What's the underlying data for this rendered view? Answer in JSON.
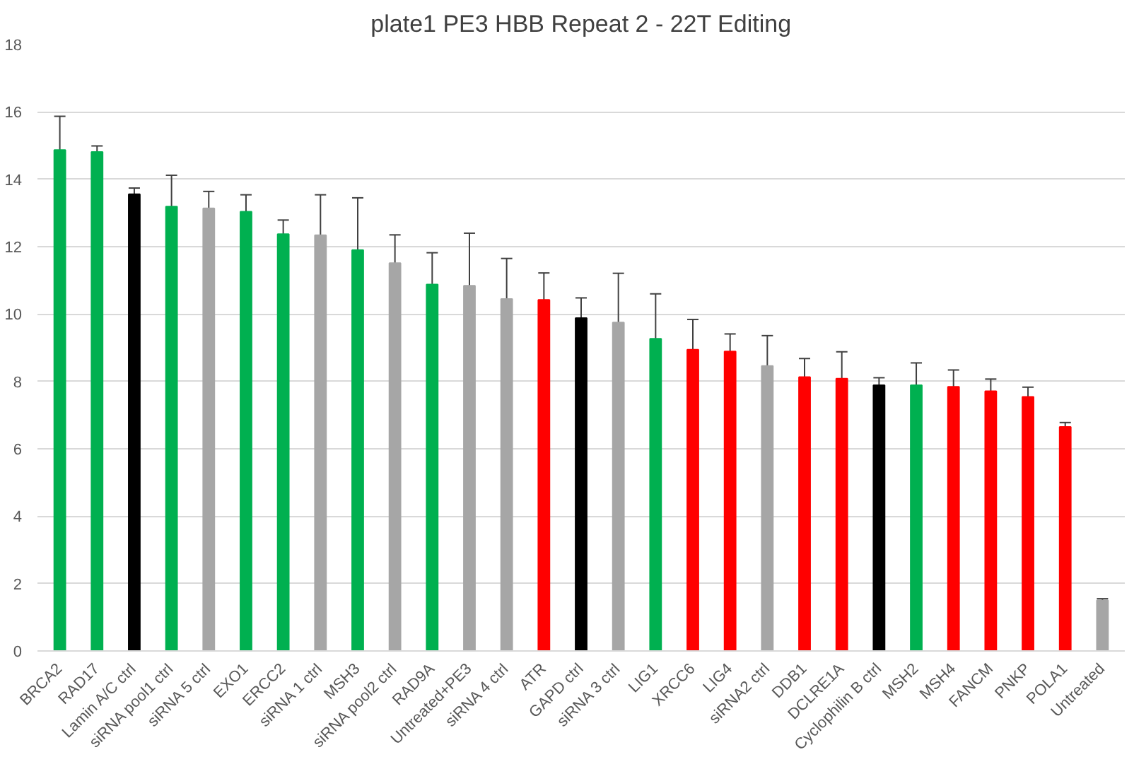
{
  "chart_data": {
    "type": "bar",
    "title": "plate1 PE3 HBB Repeat 2 - 22T Editing",
    "categories": [
      "BRCA2",
      "RAD17",
      "Lamin A/C ctrl",
      "siRNA pool1 ctrl",
      "siRNA 5 ctrl",
      "EXO1",
      "ERCC2",
      "siRNA 1 ctrl",
      "MSH3",
      "siRNA pool2 ctrl",
      "RAD9A",
      "Untreated+PE3",
      "siRNA 4 ctrl",
      "ATR",
      "GAPD ctrl",
      "siRNA 3 ctrl",
      "LIG1",
      "XRCC6",
      "LIG4",
      "siRNA2 ctrl",
      "DDB1",
      "DCLRE1A",
      "Cyclophilin B ctrl",
      "MSH2",
      "MSH4",
      "FANCM",
      "PNKP",
      "POLA1",
      "Untreated"
    ],
    "values": [
      14.87,
      14.81,
      13.56,
      13.19,
      13.14,
      13.04,
      12.37,
      12.34,
      11.9,
      11.51,
      10.88,
      10.84,
      10.45,
      10.42,
      9.88,
      9.75,
      9.27,
      8.94,
      8.89,
      8.46,
      8.13,
      8.08,
      7.89,
      7.89,
      7.84,
      7.71,
      7.54,
      6.65,
      1.5
    ],
    "errors": [
      1.0,
      0.18,
      0.18,
      0.93,
      0.5,
      0.5,
      0.42,
      1.2,
      1.55,
      0.84,
      0.94,
      1.56,
      1.2,
      0.8,
      0.6,
      1.46,
      1.33,
      0.9,
      0.52,
      0.9,
      0.55,
      0.8,
      0.22,
      0.66,
      0.5,
      0.36,
      0.29,
      0.13,
      0.05
    ],
    "colors": [
      "#00b050",
      "#00b050",
      "#000000",
      "#00b050",
      "#a6a6a6",
      "#00b050",
      "#00b050",
      "#a6a6a6",
      "#00b050",
      "#a6a6a6",
      "#00b050",
      "#a6a6a6",
      "#a6a6a6",
      "#ff0000",
      "#000000",
      "#a6a6a6",
      "#00b050",
      "#ff0000",
      "#ff0000",
      "#a6a6a6",
      "#ff0000",
      "#ff0000",
      "#000000",
      "#00b050",
      "#ff0000",
      "#ff0000",
      "#ff0000",
      "#ff0000",
      "#a6a6a6"
    ],
    "ylim": [
      0,
      18
    ],
    "yticks": [
      0,
      2,
      4,
      6,
      8,
      10,
      12,
      14,
      16,
      18
    ],
    "grid": "y"
  }
}
